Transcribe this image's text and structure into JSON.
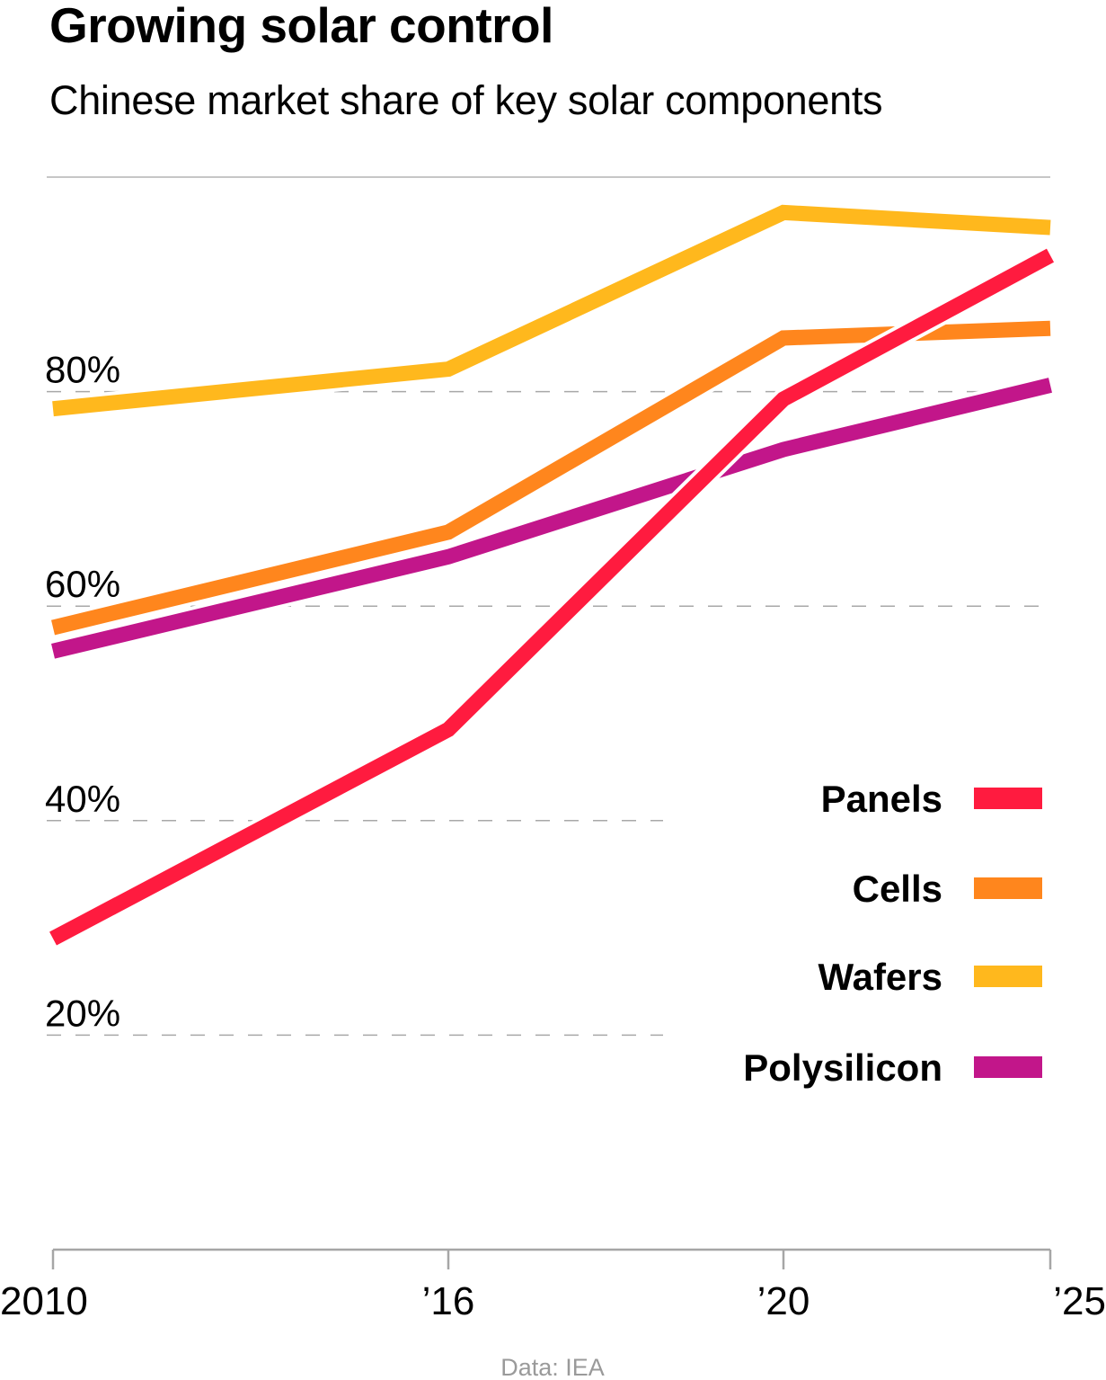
{
  "header": {
    "title": "Growing solar control",
    "subtitle": "Chinese market share of key solar components"
  },
  "footer": {
    "source": "Data: IEA"
  },
  "chart_data": {
    "type": "line",
    "title": "Growing solar control",
    "subtitle": "Chinese market share of key solar components",
    "xlabel": "",
    "ylabel": "",
    "x": [
      2010,
      2016,
      2020,
      2025
    ],
    "x_tick_labels": [
      "2010",
      "’16",
      "’20",
      "’25"
    ],
    "ylim": [
      0,
      100
    ],
    "y_ticks": [
      20,
      40,
      60,
      80
    ],
    "y_tick_labels": [
      "20%",
      "40%",
      "60%",
      "80%"
    ],
    "grid": true,
    "legend_position": "right",
    "series": [
      {
        "name": "Panels",
        "color": "#FF1B3F",
        "values": [
          29.0,
          48.5,
          79.3,
          92.7
        ]
      },
      {
        "name": "Cells",
        "color": "#FF861D",
        "values": [
          58.0,
          66.9,
          85.0,
          85.9
        ]
      },
      {
        "name": "Wafers",
        "color": "#FFB81D",
        "values": [
          78.4,
          82.1,
          96.7,
          95.3
        ]
      },
      {
        "name": "Polysilicon",
        "color": "#C2168A",
        "values": [
          55.8,
          64.6,
          74.6,
          80.6
        ]
      }
    ],
    "source": "Data: IEA"
  }
}
